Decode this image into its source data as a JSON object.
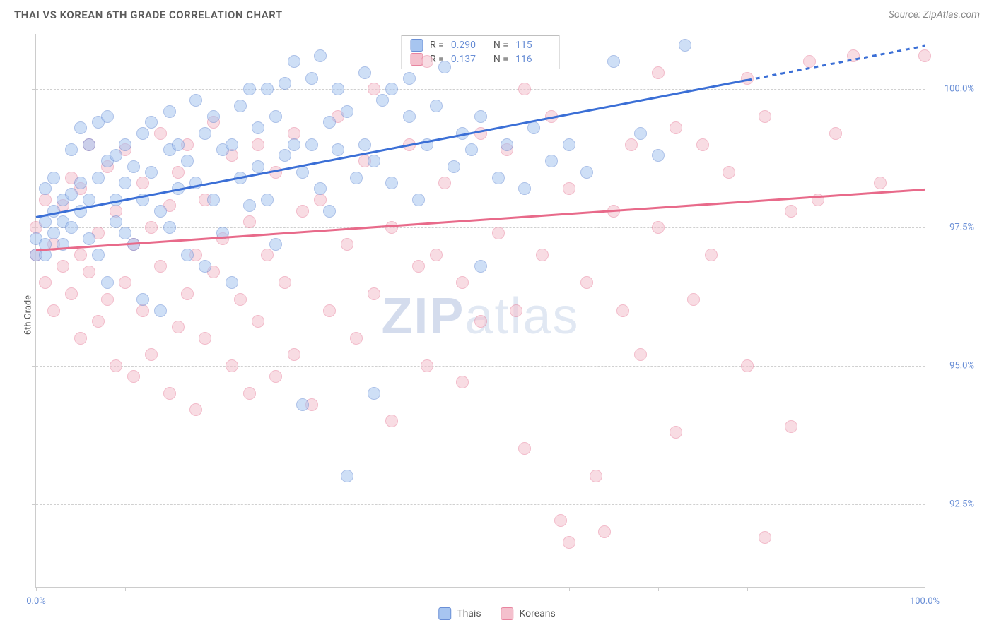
{
  "title": "THAI VS KOREAN 6TH GRADE CORRELATION CHART",
  "source": "Source: ZipAtlas.com",
  "y_axis_label": "6th Grade",
  "watermark": {
    "bold": "ZIP",
    "rest": "atlas"
  },
  "chart": {
    "type": "scatter",
    "xlim": [
      0,
      100
    ],
    "ylim": [
      91,
      101
    ],
    "x_ticks": [
      0,
      10,
      20,
      30,
      40,
      50,
      60,
      70,
      80,
      90,
      100
    ],
    "x_tick_labels": {
      "0": "0.0%",
      "100": "100.0%"
    },
    "y_ticks": [
      92.5,
      95.0,
      97.5,
      100.0
    ],
    "y_tick_labels": [
      "92.5%",
      "95.0%",
      "97.5%",
      "100.0%"
    ],
    "series": [
      {
        "name": "Thais",
        "color_fill": "#a7c5f0",
        "color_stroke": "#6a8fd6",
        "R": "0.290",
        "N": "115",
        "trend": {
          "x1": 0,
          "y1": 97.7,
          "x2": 100,
          "y2": 100.8,
          "dash_after_x": 80
        },
        "points": [
          [
            0,
            97.3
          ],
          [
            0,
            97.0
          ],
          [
            1,
            97.6
          ],
          [
            1,
            98.2
          ],
          [
            1,
            97.2
          ],
          [
            1,
            97.0
          ],
          [
            2,
            97.4
          ],
          [
            2,
            97.8
          ],
          [
            2,
            98.4
          ],
          [
            3,
            97.2
          ],
          [
            3,
            98.0
          ],
          [
            3,
            97.6
          ],
          [
            4,
            98.9
          ],
          [
            4,
            98.1
          ],
          [
            4,
            97.5
          ],
          [
            5,
            99.3
          ],
          [
            5,
            97.8
          ],
          [
            5,
            98.3
          ],
          [
            6,
            98.0
          ],
          [
            6,
            97.3
          ],
          [
            6,
            99.0
          ],
          [
            7,
            98.4
          ],
          [
            7,
            99.4
          ],
          [
            7,
            97.0
          ],
          [
            8,
            98.7
          ],
          [
            8,
            96.5
          ],
          [
            8,
            99.5
          ],
          [
            9,
            98.0
          ],
          [
            9,
            97.6
          ],
          [
            9,
            98.8
          ],
          [
            10,
            99.0
          ],
          [
            10,
            97.4
          ],
          [
            10,
            98.3
          ],
          [
            11,
            98.6
          ],
          [
            11,
            97.2
          ],
          [
            12,
            99.2
          ],
          [
            12,
            98.0
          ],
          [
            12,
            96.2
          ],
          [
            13,
            98.5
          ],
          [
            13,
            99.4
          ],
          [
            14,
            97.8
          ],
          [
            14,
            96.0
          ],
          [
            15,
            98.9
          ],
          [
            15,
            97.5
          ],
          [
            15,
            99.6
          ],
          [
            16,
            98.2
          ],
          [
            16,
            99.0
          ],
          [
            17,
            97.0
          ],
          [
            17,
            98.7
          ],
          [
            18,
            99.8
          ],
          [
            18,
            98.3
          ],
          [
            19,
            96.8
          ],
          [
            19,
            99.2
          ],
          [
            20,
            98.0
          ],
          [
            20,
            99.5
          ],
          [
            21,
            97.4
          ],
          [
            21,
            98.9
          ],
          [
            22,
            99.0
          ],
          [
            22,
            96.5
          ],
          [
            23,
            98.4
          ],
          [
            23,
            99.7
          ],
          [
            24,
            100.0
          ],
          [
            24,
            97.9
          ],
          [
            25,
            98.6
          ],
          [
            25,
            99.3
          ],
          [
            26,
            100.0
          ],
          [
            26,
            98.0
          ],
          [
            27,
            99.5
          ],
          [
            27,
            97.2
          ],
          [
            28,
            98.8
          ],
          [
            28,
            100.1
          ],
          [
            29,
            99.0
          ],
          [
            29,
            100.5
          ],
          [
            30,
            98.5
          ],
          [
            30,
            94.3
          ],
          [
            31,
            100.2
          ],
          [
            31,
            99.0
          ],
          [
            32,
            98.2
          ],
          [
            32,
            100.6
          ],
          [
            33,
            99.4
          ],
          [
            33,
            97.8
          ],
          [
            34,
            98.9
          ],
          [
            34,
            100.0
          ],
          [
            35,
            93.0
          ],
          [
            35,
            99.6
          ],
          [
            36,
            98.4
          ],
          [
            37,
            100.3
          ],
          [
            37,
            99.0
          ],
          [
            38,
            94.5
          ],
          [
            38,
            98.7
          ],
          [
            39,
            99.8
          ],
          [
            40,
            100.0
          ],
          [
            40,
            98.3
          ],
          [
            42,
            99.5
          ],
          [
            42,
            100.2
          ],
          [
            43,
            98.0
          ],
          [
            44,
            99.0
          ],
          [
            45,
            99.7
          ],
          [
            46,
            100.4
          ],
          [
            47,
            98.6
          ],
          [
            48,
            99.2
          ],
          [
            49,
            98.9
          ],
          [
            50,
            99.5
          ],
          [
            50,
            96.8
          ],
          [
            52,
            98.4
          ],
          [
            53,
            99.0
          ],
          [
            55,
            98.2
          ],
          [
            56,
            99.3
          ],
          [
            58,
            98.7
          ],
          [
            60,
            99.0
          ],
          [
            62,
            98.5
          ],
          [
            65,
            100.5
          ],
          [
            68,
            99.2
          ],
          [
            70,
            98.8
          ],
          [
            73,
            100.8
          ]
        ]
      },
      {
        "name": "Koreans",
        "color_fill": "#f4c0cd",
        "color_stroke": "#e8849f",
        "R": "0.137",
        "N": "116",
        "trend": {
          "x1": 0,
          "y1": 97.1,
          "x2": 100,
          "y2": 98.2
        },
        "points": [
          [
            0,
            97.5
          ],
          [
            0,
            97.0
          ],
          [
            1,
            96.5
          ],
          [
            1,
            98.0
          ],
          [
            2,
            97.2
          ],
          [
            2,
            96.0
          ],
          [
            3,
            96.8
          ],
          [
            3,
            97.9
          ],
          [
            4,
            98.4
          ],
          [
            4,
            96.3
          ],
          [
            5,
            97.0
          ],
          [
            5,
            95.5
          ],
          [
            5,
            98.2
          ],
          [
            6,
            96.7
          ],
          [
            6,
            99.0
          ],
          [
            7,
            95.8
          ],
          [
            7,
            97.4
          ],
          [
            8,
            96.2
          ],
          [
            8,
            98.6
          ],
          [
            9,
            97.8
          ],
          [
            9,
            95.0
          ],
          [
            10,
            96.5
          ],
          [
            10,
            98.9
          ],
          [
            11,
            97.2
          ],
          [
            11,
            94.8
          ],
          [
            12,
            96.0
          ],
          [
            12,
            98.3
          ],
          [
            13,
            97.5
          ],
          [
            13,
            95.2
          ],
          [
            14,
            99.2
          ],
          [
            14,
            96.8
          ],
          [
            15,
            94.5
          ],
          [
            15,
            97.9
          ],
          [
            16,
            98.5
          ],
          [
            16,
            95.7
          ],
          [
            17,
            96.3
          ],
          [
            17,
            99.0
          ],
          [
            18,
            97.0
          ],
          [
            18,
            94.2
          ],
          [
            19,
            98.0
          ],
          [
            19,
            95.5
          ],
          [
            20,
            96.7
          ],
          [
            20,
            99.4
          ],
          [
            21,
            97.3
          ],
          [
            22,
            95.0
          ],
          [
            22,
            98.8
          ],
          [
            23,
            96.2
          ],
          [
            24,
            97.6
          ],
          [
            24,
            94.5
          ],
          [
            25,
            99.0
          ],
          [
            25,
            95.8
          ],
          [
            26,
            97.0
          ],
          [
            27,
            98.5
          ],
          [
            27,
            94.8
          ],
          [
            28,
            96.5
          ],
          [
            29,
            99.2
          ],
          [
            29,
            95.2
          ],
          [
            30,
            97.8
          ],
          [
            31,
            94.3
          ],
          [
            32,
            98.0
          ],
          [
            33,
            96.0
          ],
          [
            34,
            99.5
          ],
          [
            35,
            97.2
          ],
          [
            36,
            95.5
          ],
          [
            37,
            98.7
          ],
          [
            38,
            100.0
          ],
          [
            38,
            96.3
          ],
          [
            40,
            97.5
          ],
          [
            40,
            94.0
          ],
          [
            42,
            99.0
          ],
          [
            43,
            96.8
          ],
          [
            44,
            95.0
          ],
          [
            44,
            100.5
          ],
          [
            45,
            97.0
          ],
          [
            46,
            98.3
          ],
          [
            48,
            96.5
          ],
          [
            48,
            94.7
          ],
          [
            50,
            99.2
          ],
          [
            50,
            95.8
          ],
          [
            52,
            97.4
          ],
          [
            53,
            98.9
          ],
          [
            54,
            96.0
          ],
          [
            55,
            100.0
          ],
          [
            55,
            93.5
          ],
          [
            57,
            97.0
          ],
          [
            58,
            99.5
          ],
          [
            59,
            92.2
          ],
          [
            60,
            98.2
          ],
          [
            60,
            91.8
          ],
          [
            62,
            96.5
          ],
          [
            63,
            93.0
          ],
          [
            64,
            92.0
          ],
          [
            65,
            97.8
          ],
          [
            66,
            96.0
          ],
          [
            67,
            99.0
          ],
          [
            68,
            95.2
          ],
          [
            70,
            100.3
          ],
          [
            70,
            97.5
          ],
          [
            72,
            99.3
          ],
          [
            72,
            93.8
          ],
          [
            74,
            96.2
          ],
          [
            75,
            99.0
          ],
          [
            76,
            97.0
          ],
          [
            78,
            98.5
          ],
          [
            80,
            95.0
          ],
          [
            80,
            100.2
          ],
          [
            82,
            99.5
          ],
          [
            82,
            91.9
          ],
          [
            85,
            97.8
          ],
          [
            85,
            93.9
          ],
          [
            87,
            100.5
          ],
          [
            88,
            98.0
          ],
          [
            90,
            99.2
          ],
          [
            92,
            100.6
          ],
          [
            95,
            98.3
          ],
          [
            100,
            100.6
          ]
        ]
      }
    ]
  },
  "bottom_legend": [
    {
      "label": "Thais",
      "color": "blue"
    },
    {
      "label": "Koreans",
      "color": "pink"
    }
  ]
}
